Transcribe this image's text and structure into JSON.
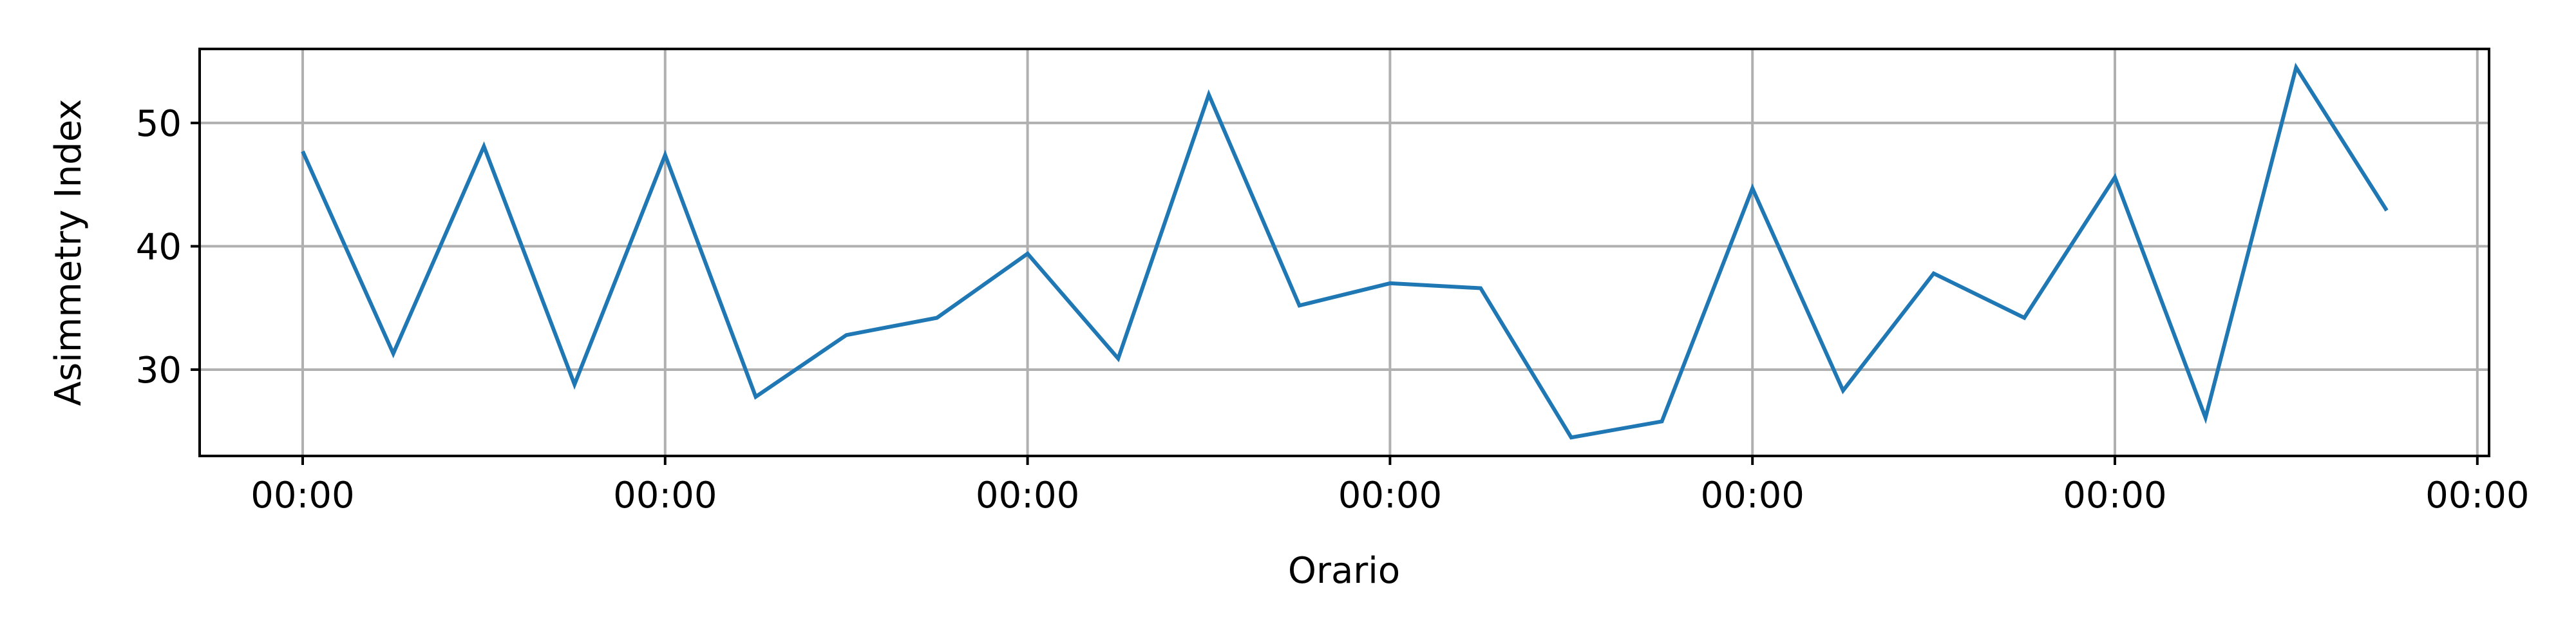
{
  "chart_data": {
    "type": "line",
    "title": "",
    "xlabel": "Orario",
    "ylabel": "Asimmetry Index",
    "grid": true,
    "legend": "none",
    "line_color": "#1f77b4",
    "x_tick_labels": [
      "00:00",
      "00:00",
      "00:00",
      "00:00",
      "00:00",
      "00:00",
      "00:00"
    ],
    "y_ticks": [
      30,
      40,
      50
    ],
    "ylim": [
      23,
      56
    ],
    "series": [
      {
        "values": [
          47.7,
          31.3,
          48.1,
          28.8,
          47.4,
          27.8,
          32.8,
          34.2,
          39.4,
          30.9,
          52.3,
          35.2,
          37.0,
          36.6,
          24.5,
          25.8,
          44.7,
          28.3,
          37.8,
          34.2,
          45.6,
          26.1,
          54.5,
          42.9
        ]
      }
    ]
  }
}
